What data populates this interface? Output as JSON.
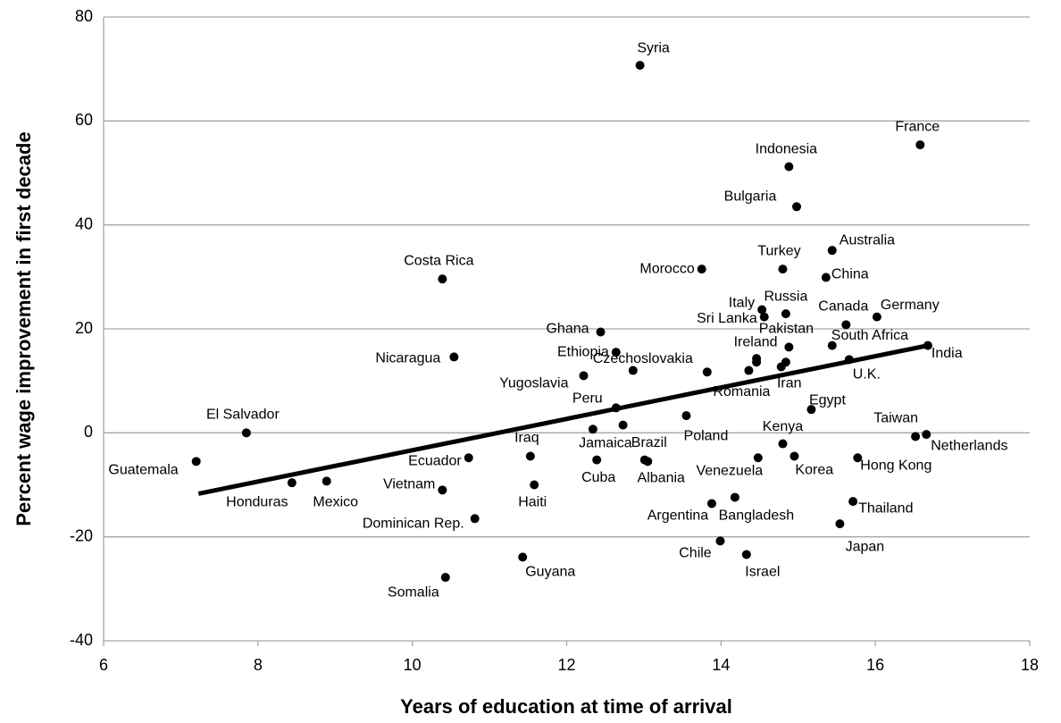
{
  "chart_data": {
    "type": "scatter",
    "x_label": "Years of education at time of arrival",
    "y_label": "Percent wage improvement in first decade",
    "point_labels": [
      "Syria",
      "France",
      "Indonesia",
      "Bulgaria",
      "Australia",
      "Turkey",
      "Morocco",
      "China",
      "Costa Rica",
      "Italy",
      "Russia",
      "Sri Lanka",
      "Canada",
      "Germany",
      "Ghana",
      "Pakistan",
      "South Africa",
      "India",
      "Ethiopia",
      "Nicaragua",
      "Ireland",
      null,
      "U.K.",
      "Czechoslovakia",
      "Yugoslavia",
      null,
      "Romania",
      "Iran",
      null,
      "Peru",
      "Egypt",
      null,
      "Jamaica",
      "Poland",
      "El Salvador",
      "Taiwan",
      "Netherlands",
      "Kenya",
      "Guatemala",
      "Ecuador",
      "Iraq",
      "Cuba",
      "Brazil",
      "Albania",
      "Venezuela",
      "Korea",
      "Hong Kong",
      "Honduras",
      "Mexico",
      "Haiti",
      "Vietnam",
      "Bangladesh",
      "Argentina",
      "Thailand",
      "Dominican Rep.",
      "Japan",
      "Chile",
      "Guyana",
      "Israel",
      "Somalia"
    ],
    "x": [
      12.95,
      16.58,
      14.88,
      14.98,
      15.44,
      14.8,
      13.75,
      15.36,
      10.39,
      14.53,
      14.84,
      14.56,
      15.62,
      16.02,
      12.44,
      14.88,
      15.44,
      16.68,
      12.64,
      10.54,
      14.46,
      14.46,
      15.66,
      12.86,
      12.22,
      13.82,
      14.36,
      14.78,
      14.84,
      12.64,
      15.17,
      12.73,
      12.34,
      13.55,
      7.85,
      16.52,
      16.66,
      14.8,
      7.2,
      10.73,
      11.53,
      12.39,
      13.01,
      13.05,
      14.48,
      14.95,
      15.77,
      8.44,
      8.89,
      11.58,
      10.39,
      14.18,
      13.88,
      15.71,
      10.81,
      15.54,
      13.99,
      11.43,
      14.33,
      10.43
    ],
    "values": [
      70.7,
      55.4,
      51.2,
      43.5,
      35.1,
      31.5,
      31.5,
      29.9,
      29.6,
      23.7,
      22.9,
      22.3,
      20.8,
      22.3,
      19.4,
      16.5,
      16.8,
      16.8,
      15.5,
      14.6,
      14.3,
      13.6,
      14.1,
      12.0,
      11.0,
      11.7,
      12.0,
      12.7,
      13.6,
      4.8,
      4.5,
      1.5,
      0.7,
      3.3,
      0,
      -0.7,
      -0.3,
      -2.1,
      -5.5,
      -4.8,
      -4.5,
      -5.2,
      -5.2,
      -5.5,
      -4.8,
      -4.5,
      -4.8,
      -9.6,
      -9.3,
      -10.0,
      -11.0,
      -12.4,
      -13.6,
      -13.2,
      -16.5,
      -17.5,
      -20.8,
      -23.9,
      -23.4,
      -27.8
    ],
    "color": "#000000",
    "trendline": {
      "x": [
        7.23,
        16.68
      ],
      "values": [
        -11.7,
        16.8
      ],
      "color": "#000000"
    },
    "xlim": [
      6,
      18
    ],
    "xticks": [
      6,
      8,
      10,
      12,
      14,
      16,
      18
    ],
    "ylim": [
      -40,
      80
    ],
    "yticks": [
      -40,
      -20,
      0,
      20,
      40,
      60,
      80
    ],
    "grid": true
  }
}
